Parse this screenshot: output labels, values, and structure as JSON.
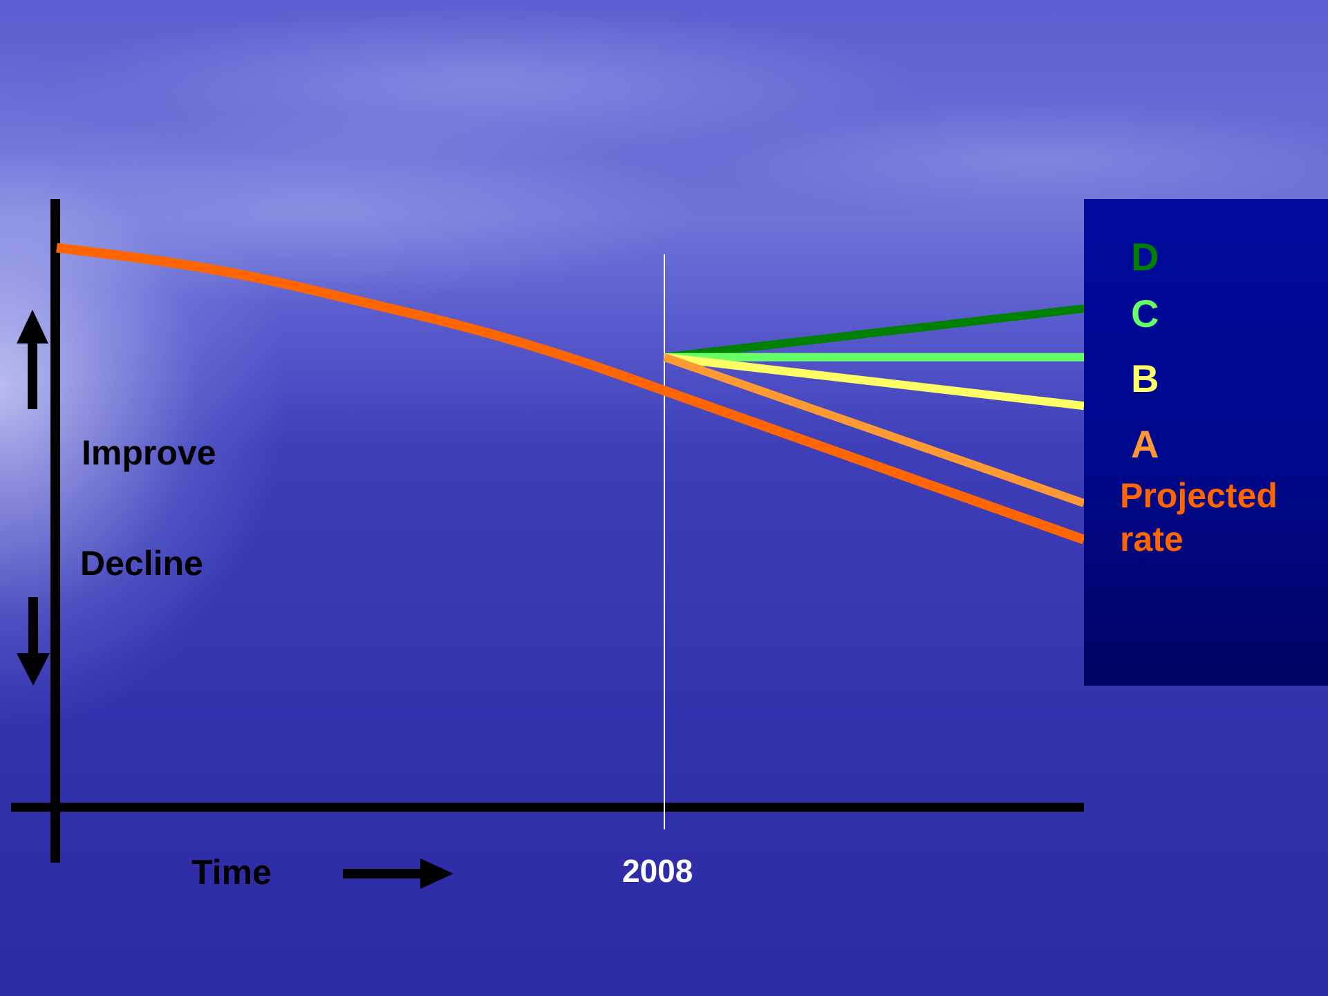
{
  "chart_data": {
    "type": "line",
    "xlabel": "Time",
    "ylabel_up": "Improve",
    "ylabel_down": "Decline",
    "marker": {
      "label": "2008"
    },
    "series": [
      {
        "name": "Projected rate",
        "color": "#ff6600",
        "values": [
          0.92,
          0.9,
          0.87,
          0.83,
          0.79,
          0.74,
          0.68,
          0.62,
          0.56,
          0.5,
          0.44
        ]
      },
      {
        "name": "A",
        "color": "#ff9933",
        "values": [
          0.74,
          0.68,
          0.62,
          0.56,
          0.5
        ]
      },
      {
        "name": "B",
        "color": "#ffff66",
        "values": [
          0.74,
          0.72,
          0.7,
          0.68,
          0.66
        ]
      },
      {
        "name": "C",
        "color": "#66ff66",
        "values": [
          0.74,
          0.74,
          0.74,
          0.74,
          0.74
        ]
      },
      {
        "name": "D",
        "color": "#008000",
        "values": [
          0.74,
          0.76,
          0.78,
          0.8,
          0.82
        ]
      }
    ],
    "legend_labels": [
      {
        "text": "D",
        "color": "#008000"
      },
      {
        "text": "C",
        "color": "#66ff66"
      },
      {
        "text": "B",
        "color": "#ffff66"
      },
      {
        "text": "A",
        "color": "#ff9933"
      },
      {
        "text": "Projected",
        "color": "#ff6600"
      },
      {
        "text": "rate",
        "color": "#ff6600"
      }
    ]
  }
}
